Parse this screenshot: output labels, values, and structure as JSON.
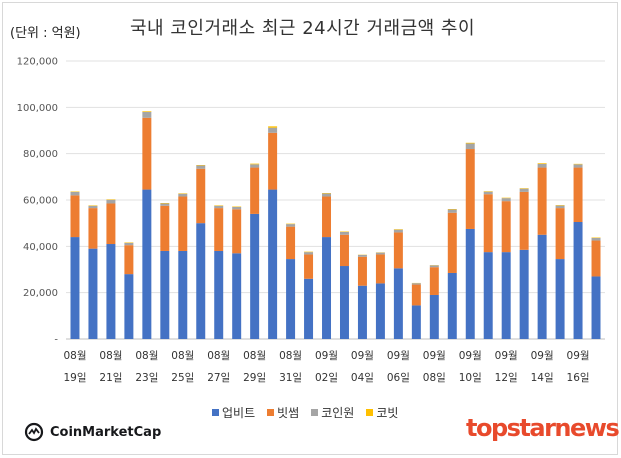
{
  "chart_data": {
    "type": "bar",
    "stacked": true,
    "title": "국내 코인거래소 최근 24시간 거래금액 추이",
    "unit_label": "(단위 : 억원)",
    "xlabel": "",
    "ylabel": "",
    "ylim": [
      0,
      120000
    ],
    "y_ticks": [
      "-",
      "20,000",
      "40,000",
      "60,000",
      "80,000",
      "100,000",
      "120,000"
    ],
    "grid": true,
    "legend_position": "bottom",
    "x_tick_labels": [
      {
        "top": "08월",
        "bottom": "19일"
      },
      {
        "top": "08월",
        "bottom": "21일"
      },
      {
        "top": "08월",
        "bottom": "23일"
      },
      {
        "top": "08월",
        "bottom": "25일"
      },
      {
        "top": "08월",
        "bottom": "27일"
      },
      {
        "top": "08월",
        "bottom": "29일"
      },
      {
        "top": "08월",
        "bottom": "31일"
      },
      {
        "top": "09월",
        "bottom": "02일"
      },
      {
        "top": "09월",
        "bottom": "04일"
      },
      {
        "top": "09월",
        "bottom": "06일"
      },
      {
        "top": "09월",
        "bottom": "08일"
      },
      {
        "top": "09월",
        "bottom": "10일"
      },
      {
        "top": "09월",
        "bottom": "12일"
      },
      {
        "top": "09월",
        "bottom": "14일"
      },
      {
        "top": "09월",
        "bottom": "16일"
      }
    ],
    "categories": [
      "08-19",
      "08-20",
      "08-21",
      "08-22",
      "08-23",
      "08-24",
      "08-25",
      "08-26",
      "08-27",
      "08-28",
      "08-29",
      "08-30",
      "08-31",
      "09-01",
      "09-02",
      "09-03",
      "09-04",
      "09-05",
      "09-06",
      "09-07",
      "09-08",
      "09-09",
      "09-10",
      "09-11",
      "09-12",
      "09-13",
      "09-14",
      "09-15",
      "09-16",
      "09-17"
    ],
    "series": [
      {
        "name": "업비트",
        "color": "#4472c4",
        "values": [
          44000,
          39000,
          41000,
          28000,
          64500,
          38000,
          38000,
          50000,
          38000,
          37000,
          54000,
          64500,
          34500,
          26000,
          44000,
          31500,
          23000,
          24000,
          30500,
          14500,
          19000,
          28500,
          47500,
          37500,
          37500,
          38500,
          45000,
          34500,
          50500,
          27000
        ]
      },
      {
        "name": "빗썸",
        "color": "#ed7d31",
        "values": [
          18000,
          17500,
          17500,
          12500,
          31000,
          19500,
          23500,
          23500,
          18500,
          19000,
          20000,
          24500,
          14000,
          10500,
          17500,
          13500,
          12500,
          12500,
          15500,
          9000,
          12000,
          26000,
          34500,
          25000,
          22000,
          25000,
          29000,
          22000,
          23500,
          15500
        ]
      },
      {
        "name": "코인원",
        "color": "#a5a5a5",
        "values": [
          1500,
          1000,
          1600,
          1000,
          2500,
          1000,
          1200,
          1400,
          1000,
          1000,
          1400,
          2200,
          1100,
          1000,
          1300,
          1200,
          800,
          800,
          1200,
          600,
          800,
          1400,
          2400,
          1100,
          1300,
          1400,
          1600,
          1100,
          1400,
          1100
        ]
      },
      {
        "name": "코빗",
        "color": "#ffc000",
        "values": [
          200,
          200,
          200,
          200,
          300,
          200,
          200,
          200,
          200,
          200,
          300,
          600,
          200,
          200,
          200,
          200,
          100,
          100,
          200,
          100,
          100,
          200,
          300,
          200,
          200,
          200,
          300,
          200,
          200,
          200
        ]
      }
    ]
  },
  "footer": {
    "left_logo_text": "CoinMarketCap",
    "right_logo_text": "topstarnews"
  }
}
